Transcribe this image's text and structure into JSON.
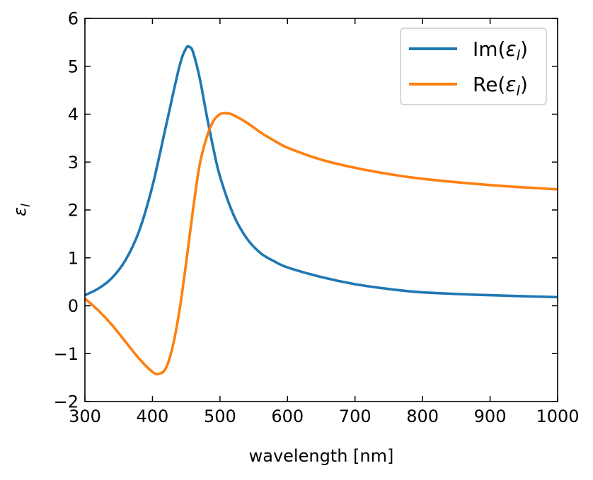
{
  "chart_data": {
    "type": "line",
    "xlabel": "wavelength [nm]",
    "ylabel": "ε_l",
    "xlim": [
      300,
      1000
    ],
    "ylim": [
      -2,
      6
    ],
    "xticks": [
      300,
      400,
      500,
      600,
      700,
      800,
      900,
      1000
    ],
    "yticks": [
      -2,
      -1,
      0,
      1,
      2,
      3,
      4,
      5,
      6
    ],
    "xtick_labels": [
      "300",
      "400",
      "500",
      "600",
      "700",
      "800",
      "900",
      "1000"
    ],
    "ytick_labels": [
      "−2",
      "−1",
      "0",
      "1",
      "2",
      "3",
      "4",
      "5",
      "6"
    ],
    "grid": false,
    "legend_position": "top-right",
    "series": [
      {
        "name": "Im(ε_l)",
        "color": "#1f77b4",
        "x": [
          300,
          320,
          340,
          360,
          380,
          400,
          420,
          440,
          450,
          455,
          460,
          470,
          480,
          490,
          500,
          520,
          540,
          560,
          580,
          600,
          650,
          700,
          750,
          800,
          900,
          1000
        ],
        "y": [
          0.22,
          0.36,
          0.58,
          0.95,
          1.55,
          2.5,
          3.75,
          5.0,
          5.38,
          5.4,
          5.3,
          4.75,
          4.0,
          3.3,
          2.7,
          1.9,
          1.4,
          1.1,
          0.93,
          0.8,
          0.6,
          0.45,
          0.35,
          0.28,
          0.22,
          0.18
        ]
      },
      {
        "name": "Re(ε_l)",
        "color": "#ff7f0e",
        "x": [
          300,
          320,
          340,
          360,
          380,
          400,
          410,
          420,
          430,
          440,
          450,
          460,
          470,
          480,
          490,
          500,
          510,
          520,
          540,
          560,
          580,
          600,
          650,
          700,
          750,
          800,
          900,
          1000
        ],
        "y": [
          0.15,
          -0.1,
          -0.4,
          -0.75,
          -1.1,
          -1.38,
          -1.42,
          -1.3,
          -0.85,
          -0.1,
          0.9,
          2.0,
          2.95,
          3.5,
          3.85,
          4.0,
          4.02,
          3.98,
          3.82,
          3.62,
          3.45,
          3.3,
          3.05,
          2.88,
          2.75,
          2.65,
          2.52,
          2.43
        ]
      }
    ]
  }
}
